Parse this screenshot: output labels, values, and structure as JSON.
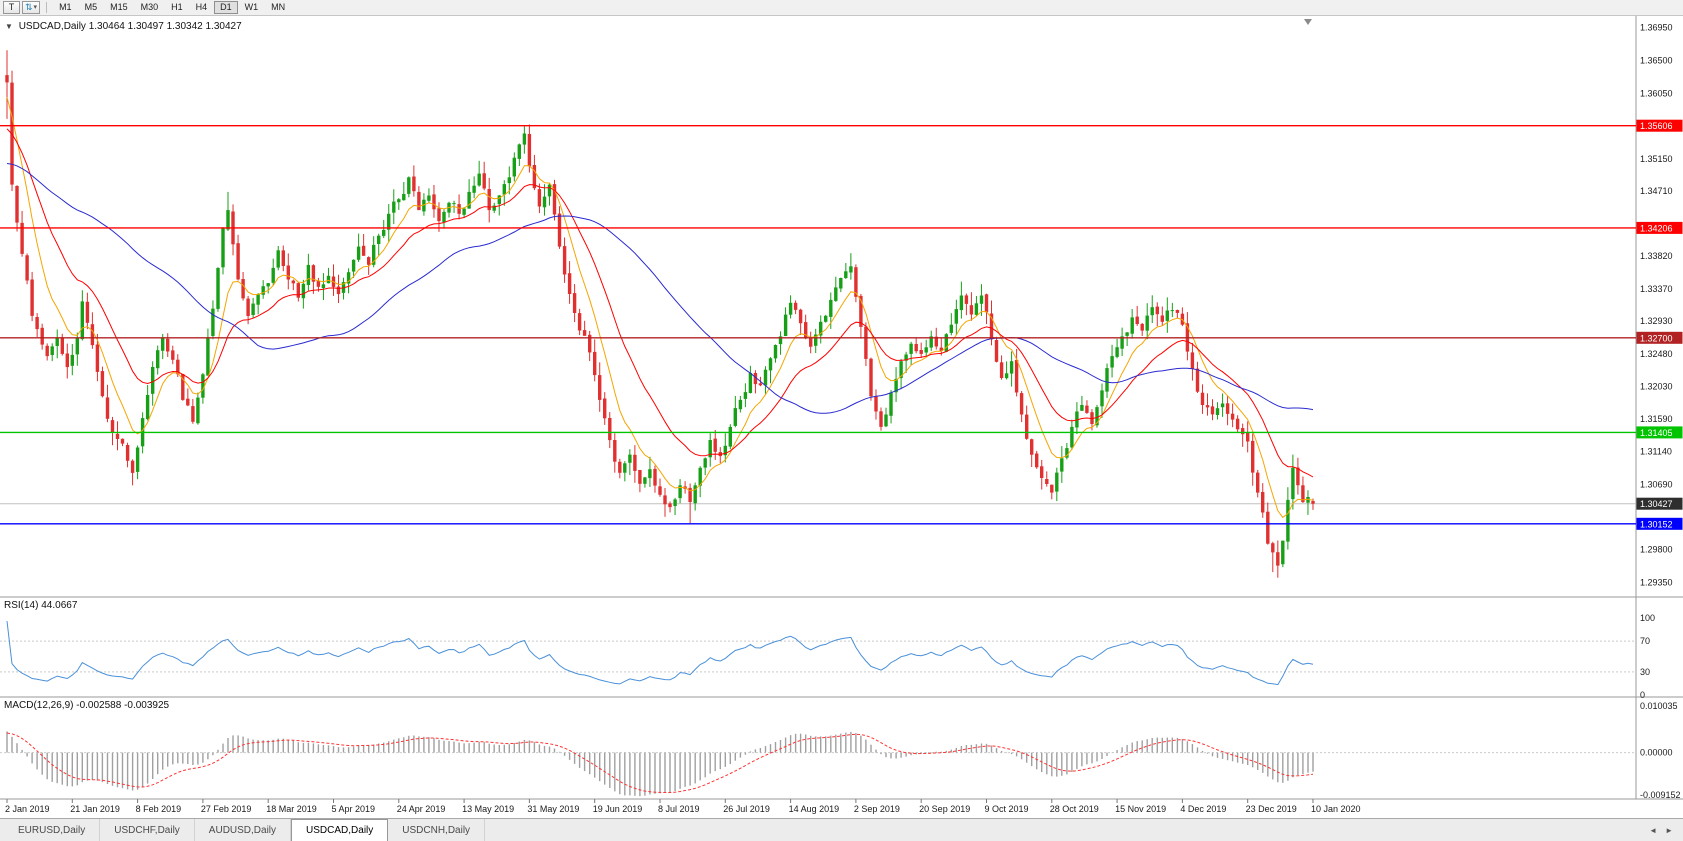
{
  "toolbar": {
    "t_button": "T",
    "arrows_icon": "⇅",
    "caret": "▾",
    "timeframes": [
      "M1",
      "M5",
      "M15",
      "M30",
      "H1",
      "H4",
      "D1",
      "W1",
      "MN"
    ],
    "active_timeframe": "D1"
  },
  "chart": {
    "title": {
      "collapse_icon": "▼",
      "symbol": "USDCAD,Daily",
      "ohlc": "1.30464 1.30497 1.30342 1.30427"
    }
  },
  "chart_data": {
    "type": "candlestick",
    "symbol": "USDCAD",
    "timeframe": "Daily",
    "last_ohlc": {
      "open": 1.30464,
      "high": 1.30497,
      "low": 1.30342,
      "close": 1.30427
    },
    "bar_count": 261,
    "bars_per_label": 13,
    "price_range": {
      "max": 1.37,
      "min": 1.293
    },
    "price_axis_ticks": [
      "1.36950",
      "1.36500",
      "1.36050",
      "1.35150",
      "1.34710",
      "1.33820",
      "1.33370",
      "1.32930",
      "1.32480",
      "1.32030",
      "1.31590",
      "1.31140",
      "1.30690",
      "1.29800",
      "1.29350"
    ],
    "hlines": [
      {
        "price": 1.35606,
        "label": "1.35606",
        "color": "#ff0000"
      },
      {
        "price": 1.34206,
        "label": "1.34206",
        "color": "#ff0000"
      },
      {
        "price": 1.327,
        "label": "1.32700",
        "color": "#b22222"
      },
      {
        "price": 1.31405,
        "label": "1.31405",
        "color": "#00c400"
      },
      {
        "price": 1.30152,
        "label": "1.30152",
        "color": "#0000ff"
      }
    ],
    "current_price_tag": {
      "price": 1.30427,
      "label": "1.30427",
      "bg": "#2e2e2e",
      "line_color": "#c0c0c0"
    },
    "x_axis_labels": [
      "2 Jan 2019",
      "21 Jan 2019",
      "8 Feb 2019",
      "27 Feb 2019",
      "18 Mar 2019",
      "5 Apr 2019",
      "24 Apr 2019",
      "13 May 2019",
      "31 May 2019",
      "19 Jun 2019",
      "8 Jul 2019",
      "26 Jul 2019",
      "14 Aug 2019",
      "2 Sep 2019",
      "20 Sep 2019",
      "9 Oct 2019",
      "28 Oct 2019",
      "15 Nov 2019",
      "4 Dec 2019",
      "23 Dec 2019",
      "10 Jan 2020"
    ],
    "up_color": "#17a017",
    "down_color": "#e03030",
    "moving_averages": [
      {
        "name": "fast-ma",
        "type": "ema",
        "period": 8,
        "color": "#f5a500"
      },
      {
        "name": "medium-ma",
        "type": "ema",
        "period": 20,
        "color": "#ff0000"
      },
      {
        "name": "slow-ma",
        "type": "sma",
        "period": 50,
        "color": "#2a2ad0"
      }
    ],
    "anchors": [
      [
        0,
        1.362
      ],
      [
        1,
        1.348
      ],
      [
        3,
        1.3385
      ],
      [
        5,
        1.33
      ],
      [
        8,
        1.3245
      ],
      [
        10,
        1.327
      ],
      [
        12,
        1.323
      ],
      [
        14,
        1.327
      ],
      [
        15,
        1.332
      ],
      [
        17,
        1.326
      ],
      [
        19,
        1.319
      ],
      [
        21,
        1.314
      ],
      [
        23,
        1.3125
      ],
      [
        25,
        1.3085
      ],
      [
        27,
        1.316
      ],
      [
        29,
        1.323
      ],
      [
        31,
        1.327
      ],
      [
        33,
        1.324
      ],
      [
        35,
        1.3185
      ],
      [
        37,
        1.3155
      ],
      [
        39,
        1.322
      ],
      [
        41,
        1.331
      ],
      [
        43,
        1.342
      ],
      [
        44,
        1.3445
      ],
      [
        46,
        1.335
      ],
      [
        48,
        1.33
      ],
      [
        50,
        1.333
      ],
      [
        52,
        1.3345
      ],
      [
        54,
        1.339
      ],
      [
        56,
        1.335
      ],
      [
        58,
        1.3325
      ],
      [
        60,
        1.337
      ],
      [
        62,
        1.334
      ],
      [
        64,
        1.3355
      ],
      [
        66,
        1.333
      ],
      [
        68,
        1.336
      ],
      [
        70,
        1.3395
      ],
      [
        72,
        1.337
      ],
      [
        74,
        1.341
      ],
      [
        76,
        1.344
      ],
      [
        78,
        1.346
      ],
      [
        80,
        1.349
      ],
      [
        82,
        1.3445
      ],
      [
        84,
        1.3465
      ],
      [
        86,
        1.343
      ],
      [
        88,
        1.3455
      ],
      [
        90,
        1.344
      ],
      [
        92,
        1.347
      ],
      [
        94,
        1.3495
      ],
      [
        96,
        1.3445
      ],
      [
        98,
        1.3465
      ],
      [
        100,
        1.349
      ],
      [
        102,
        1.3535
      ],
      [
        103,
        1.355
      ],
      [
        104,
        1.3505
      ],
      [
        106,
        1.345
      ],
      [
        108,
        1.348
      ],
      [
        110,
        1.3395
      ],
      [
        112,
        1.333
      ],
      [
        114,
        1.328
      ],
      [
        116,
        1.325
      ],
      [
        118,
        1.3185
      ],
      [
        120,
        1.313
      ],
      [
        122,
        1.3085
      ],
      [
        124,
        1.311
      ],
      [
        126,
        1.307
      ],
      [
        128,
        1.309
      ],
      [
        130,
        1.3055
      ],
      [
        132,
        1.3038
      ],
      [
        134,
        1.3068
      ],
      [
        136,
        1.3045
      ],
      [
        138,
        1.3092
      ],
      [
        140,
        1.313
      ],
      [
        142,
        1.3108
      ],
      [
        144,
        1.3148
      ],
      [
        146,
        1.3185
      ],
      [
        148,
        1.3222
      ],
      [
        150,
        1.3205
      ],
      [
        152,
        1.3242
      ],
      [
        154,
        1.3272
      ],
      [
        156,
        1.3318
      ],
      [
        158,
        1.329
      ],
      [
        160,
        1.3258
      ],
      [
        162,
        1.3292
      ],
      [
        164,
        1.3322
      ],
      [
        166,
        1.3352
      ],
      [
        168,
        1.3368
      ],
      [
        170,
        1.3285
      ],
      [
        172,
        1.319
      ],
      [
        174,
        1.3148
      ],
      [
        176,
        1.3195
      ],
      [
        178,
        1.3238
      ],
      [
        180,
        1.3262
      ],
      [
        182,
        1.3248
      ],
      [
        184,
        1.3272
      ],
      [
        186,
        1.3252
      ],
      [
        188,
        1.3288
      ],
      [
        190,
        1.3328
      ],
      [
        192,
        1.3302
      ],
      [
        194,
        1.3328
      ],
      [
        196,
        1.3268
      ],
      [
        198,
        1.3215
      ],
      [
        200,
        1.3238
      ],
      [
        202,
        1.3165
      ],
      [
        204,
        1.311
      ],
      [
        206,
        1.3078
      ],
      [
        208,
        1.3058
      ],
      [
        210,
        1.3105
      ],
      [
        212,
        1.3148
      ],
      [
        214,
        1.3178
      ],
      [
        216,
        1.3152
      ],
      [
        218,
        1.3198
      ],
      [
        220,
        1.3245
      ],
      [
        222,
        1.3272
      ],
      [
        224,
        1.3298
      ],
      [
        226,
        1.328
      ],
      [
        228,
        1.3312
      ],
      [
        230,
        1.3292
      ],
      [
        232,
        1.3308
      ],
      [
        234,
        1.3288
      ],
      [
        236,
        1.3228
      ],
      [
        238,
        1.3178
      ],
      [
        240,
        1.3165
      ],
      [
        242,
        1.318
      ],
      [
        244,
        1.3158
      ],
      [
        246,
        1.3138
      ],
      [
        247,
        1.3128
      ],
      [
        249,
        1.3058
      ],
      [
        251,
        1.2988
      ],
      [
        253,
        1.2958
      ],
      [
        254,
        1.2992
      ],
      [
        255,
        1.3048
      ],
      [
        256,
        1.3092
      ],
      [
        257,
        1.3068
      ],
      [
        258,
        1.3045
      ],
      [
        259,
        1.3052
      ],
      [
        260,
        1.30427
      ]
    ],
    "overrides": [
      {
        "i": 0,
        "o": 1.363,
        "h": 1.3664,
        "l": 1.357
      },
      {
        "i": 25,
        "l": 1.3068
      },
      {
        "i": 44,
        "h": 1.347
      },
      {
        "i": 103,
        "h": 1.3561
      },
      {
        "i": 136,
        "l": 1.3016
      },
      {
        "i": 168,
        "h": 1.3386
      },
      {
        "i": 190,
        "h": 1.3347
      },
      {
        "i": 252,
        "l": 1.2949
      },
      {
        "i": 256,
        "h": 1.311
      },
      {
        "i": 260,
        "o": 1.30464,
        "h": 1.30497,
        "l": 1.30342,
        "c": 1.30427
      }
    ]
  },
  "rsi_panel": {
    "label": "RSI(14) 44.0667",
    "period": 14,
    "value": 44.0667,
    "ticks": [
      {
        "text": "100",
        "value": 100
      },
      {
        "text": "70",
        "value": 70
      },
      {
        "text": "30",
        "value": 30
      },
      {
        "text": "0",
        "value": 0
      }
    ],
    "levels": [
      70,
      30
    ],
    "color": "#4a90d9",
    "level_color": "#c9c9c9"
  },
  "macd_panel": {
    "label": "MACD(12,26,9) -0.002588 -0.003925",
    "fast": 12,
    "slow": 26,
    "signal": 9,
    "macd_value": -0.002588,
    "signal_value": -0.003925,
    "ticks": [
      {
        "text": "0.010035",
        "value": 0.010035
      },
      {
        "text": "0.00000",
        "value": 0
      },
      {
        "text": "-0.009152",
        "value": -0.009152
      }
    ],
    "hist_color": "#a0a0a0",
    "signal_color": "#ff3333",
    "zero_line_color": "#cccccc"
  },
  "tabs": {
    "items": [
      "EURUSD,Daily",
      "USDCHF,Daily",
      "AUDUSD,Daily",
      "USDCAD,Daily",
      "USDCNH,Daily"
    ],
    "active_index": 3,
    "scroll_left": "◄",
    "scroll_right": "►"
  }
}
